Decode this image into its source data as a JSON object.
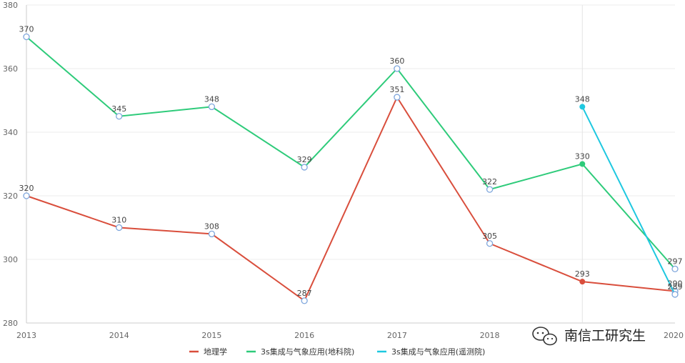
{
  "chart_data": {
    "type": "line",
    "title": "",
    "xlabel": "",
    "ylabel": "",
    "x": [
      "2013",
      "2014",
      "2015",
      "2016",
      "2017",
      "2018",
      "2019",
      "2020"
    ],
    "x_tick_labels": [
      "2013",
      "2014",
      "2015",
      "2016",
      "2017",
      "2018",
      "",
      "2020"
    ],
    "ylim": [
      280,
      380
    ],
    "y_ticks": [
      280,
      300,
      320,
      340,
      360,
      380
    ],
    "grid": "horizontal",
    "legend_position": "bottom",
    "series": [
      {
        "name": "地理学",
        "color": "#d94e3c",
        "values": [
          320,
          310,
          308,
          287,
          351,
          305,
          293,
          290
        ],
        "labels": [
          "320",
          "310",
          "308",
          "287",
          "351",
          "305",
          "293",
          "290"
        ]
      },
      {
        "name": "3s集成与气象应用(地科院)",
        "color": "#2ecb7a",
        "values": [
          370,
          345,
          348,
          329,
          360,
          322,
          330,
          297
        ],
        "labels": [
          "370",
          "345",
          "348",
          "329",
          "360",
          "322",
          "330",
          "297"
        ]
      },
      {
        "name": "3s集成与气象应用(遥测院)",
        "color": "#1ec8e0",
        "values": [
          null,
          null,
          null,
          null,
          null,
          null,
          348,
          289
        ],
        "labels": [
          "",
          "",
          "",
          "",
          "",
          "",
          "348",
          "289"
        ]
      }
    ]
  },
  "watermark": {
    "text": "南信工研究生",
    "icon": "wechat-icon"
  }
}
